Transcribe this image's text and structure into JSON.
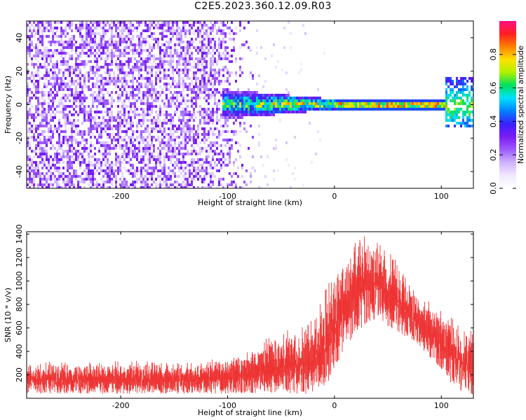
{
  "title": "C2E5.2023.360.12.09.R03",
  "colors": {
    "snr_series": "#ee3333",
    "axis": "#000000",
    "colormap": [
      "#ffffff",
      "#f0e8ff",
      "#cfb4ff",
      "#9d5cff",
      "#7a1cf0",
      "#3a20ff",
      "#0080ff",
      "#00e0ff",
      "#00e060",
      "#b0f000",
      "#ffe000",
      "#ff8000",
      "#ff2020",
      "#ff1080"
    ]
  },
  "chart_data": [
    {
      "type": "heatmap",
      "title": "",
      "xlabel": "Height of straight line (km)",
      "ylabel": "Frequency (Hz)",
      "xlim": [
        -288,
        130
      ],
      "ylim": [
        -50,
        50
      ],
      "x_ticks": [
        -200,
        -100,
        0,
        100
      ],
      "y_ticks": [
        -40,
        -20,
        0,
        20,
        40
      ],
      "colorbar": {
        "label": "Normalized spectral amplitude",
        "range": [
          0.0,
          1.0
        ],
        "ticks": [
          0.0,
          0.2,
          0.4,
          0.6,
          0.8
        ]
      },
      "features": [
        {
          "description": "broadband noise",
          "x_range": [
            -288,
            -75
          ],
          "freq_range": [
            -50,
            50
          ],
          "amplitude": 0.25
        },
        {
          "description": "narrowing tone band",
          "x_range": [
            -105,
            0
          ],
          "freq_range": [
            -8,
            10
          ],
          "amplitude": 0.45
        },
        {
          "description": "strong tone near 0 Hz",
          "x_range": [
            0,
            105
          ],
          "freq_range": [
            -2,
            2
          ],
          "amplitude": 0.9
        },
        {
          "description": "secondary tone burst",
          "x_range": [
            103,
            130
          ],
          "freq_range": [
            -12,
            18
          ],
          "amplitude": 0.5
        }
      ]
    },
    {
      "type": "line",
      "title": "",
      "xlabel": "Height of straight line (km)",
      "ylabel": "SNR (10 * v/v)",
      "xlim": [
        -288,
        130
      ],
      "ylim": [
        0,
        1420
      ],
      "x_ticks": [
        -200,
        -100,
        0,
        100
      ],
      "y_ticks": [
        200,
        400,
        600,
        800,
        1000,
        1200,
        1400
      ],
      "series": [
        {
          "x": [
            -288,
            -260,
            -230,
            -200,
            -170,
            -140,
            -110,
            -90,
            -75,
            -60,
            -45,
            -30,
            -20,
            -10,
            0,
            10,
            20,
            30,
            40,
            50,
            60,
            70,
            80,
            90,
            100,
            110,
            120,
            130
          ],
          "lower": [
            40,
            40,
            40,
            40,
            40,
            40,
            40,
            40,
            40,
            40,
            40,
            40,
            40,
            60,
            250,
            430,
            560,
            640,
            680,
            600,
            560,
            500,
            420,
            340,
            240,
            120,
            50,
            30
          ],
          "upper": [
            300,
            330,
            310,
            320,
            320,
            300,
            340,
            390,
            450,
            550,
            580,
            620,
            700,
            920,
            1130,
            1310,
            1360,
            1400,
            1350,
            1290,
            1150,
            1000,
            880,
            820,
            760,
            700,
            620,
            600
          ]
        }
      ]
    }
  ]
}
